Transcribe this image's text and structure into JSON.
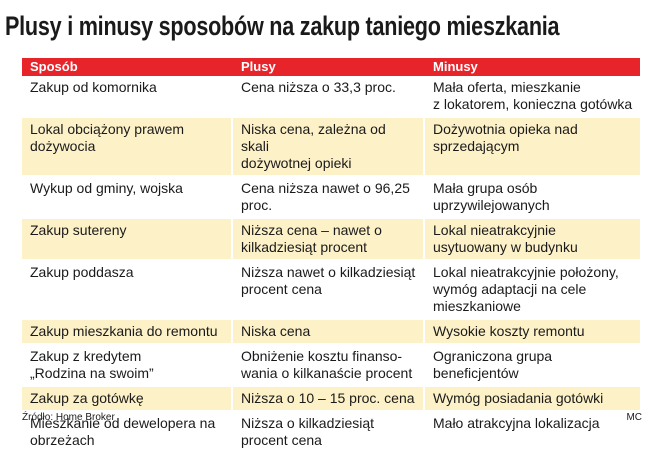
{
  "title": "Plusy i minusy sposobów na zakup taniego mieszkania",
  "table": {
    "headers": [
      "Sposób",
      "Plusy",
      "Minusy"
    ],
    "rows": [
      [
        "Zakup od komornika",
        "Cena niższa o 33,3 proc.",
        "Mała oferta, mieszkanie\nz lokatorem, konieczna gotówka"
      ],
      [
        "Lokal obciążony prawem\ndożywocia",
        "Niska cena, zależna od skali\ndożywotnej opieki",
        "Dożywotnia opieka nad\nsprzedającym"
      ],
      [
        "Wykup od gminy, wojska",
        "Cena niższa nawet o 96,25\nproc.",
        "Mała grupa osób\nuprzywilejowanych"
      ],
      [
        "Zakup sutereny",
        "Niższa cena – nawet o\nkilkadziesiąt procent",
        "Lokal nieatrakcyjnie\nusytuowany w budynku"
      ],
      [
        "Zakup poddasza",
        "Niższa nawet o kilkadziesiąt\nprocent cena",
        "Lokal nieatrakcyjnie położony,\nwymóg adaptacji na cele\nmieszkaniowe"
      ],
      [
        "Zakup mieszkania do remontu",
        "Niska cena",
        "Wysokie koszty remontu"
      ],
      [
        "Zakup z kredytem\n„Rodzina na swoim”",
        "Obniżenie kosztu finanso-\nwania o kilkanaście procent",
        "Ograniczona grupa\nbeneficjentów"
      ],
      [
        "Zakup za gotówkę",
        "Niższa o 10 – 15 proc. cena",
        "Wymóg posiadania gotówki"
      ],
      [
        "Mieszkanie od dewelopera na\nobrzeżach",
        "Niższa o kilkadziesiąt\nprocent cena",
        "Mało atrakcyjna lokalizacja"
      ]
    ]
  },
  "footer": {
    "source": "Źródło: Home Broker",
    "credit": "MC"
  },
  "colors": {
    "header_bg": "#e8242b",
    "shaded_row_bg": "#fdf1c8"
  }
}
